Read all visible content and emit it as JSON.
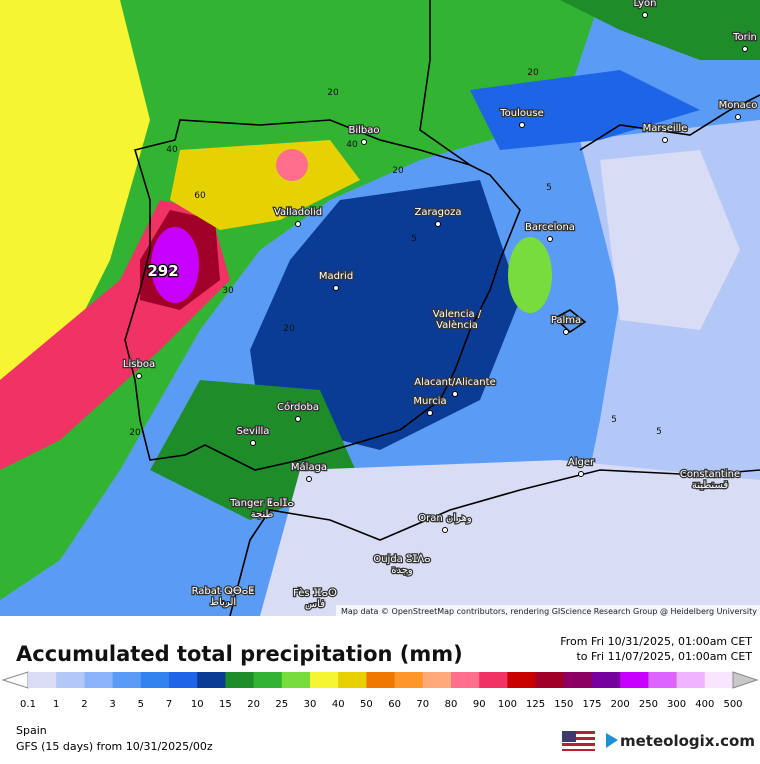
{
  "map": {
    "cities": [
      {
        "label": "Lyon"
      },
      {
        "label": "Torin"
      },
      {
        "label": "Monaco"
      },
      {
        "label": "Marseille"
      },
      {
        "label": "Toulouse"
      },
      {
        "label": "Bilbao"
      },
      {
        "label": "Valladolid"
      },
      {
        "label": "Zaragoza"
      },
      {
        "label": "Barcelona"
      },
      {
        "label": "Madrid"
      },
      {
        "label": "Valencia /",
        "label2": "València"
      },
      {
        "label": "Palma"
      },
      {
        "label": "Lisboa"
      },
      {
        "label": "Alacant/Alicante"
      },
      {
        "label": "Murcia"
      },
      {
        "label": "Córdoba"
      },
      {
        "label": "Sevilla"
      },
      {
        "label": "Málaga"
      },
      {
        "label": "Alger"
      },
      {
        "label": "Constantine",
        "label2": "قسنطينة"
      },
      {
        "label": "Tanger ⵟⴰⵏⵊⴰ",
        "label2": "طنجة"
      },
      {
        "label": "Oran وهران"
      },
      {
        "label": "Oujda ⵓⵊⴷⴰ",
        "label2": "وجدة"
      },
      {
        "label": "Rabat ⵕⴱⴰⵟ",
        "label2": "الرباط"
      },
      {
        "label": "Fès ⴼⴰⵙ",
        "label2": "فاس"
      }
    ],
    "contour_labels": [
      "20",
      "40",
      "40",
      "60",
      "20",
      "20",
      "5",
      "5",
      "30",
      "20",
      "20",
      "5",
      "5"
    ],
    "max_label": "292",
    "attribution": "Map data © OpenStreetMap contributors, rendering GIScience Research Group @ Heidelberg University"
  },
  "title": "Accumulated total precipitation (mm)",
  "period": {
    "from": "From Fri 10/31/2025, 01:00am CET",
    "to": "to Fri 11/07/2025, 01:00am CET"
  },
  "legend": {
    "levels": [
      {
        "label": 0.1,
        "color": "#d8dcf4"
      },
      {
        "label": 1,
        "color": "#b4c8f8"
      },
      {
        "label": 2,
        "color": "#8cb4fa"
      },
      {
        "label": 3,
        "color": "#5a9cf5"
      },
      {
        "label": 5,
        "color": "#3282f0"
      },
      {
        "label": 7,
        "color": "#1e64e6"
      },
      {
        "label": 10,
        "color": "#0a3c96"
      },
      {
        "label": 15,
        "color": "#1e8c28"
      },
      {
        "label": 20,
        "color": "#32b432"
      },
      {
        "label": 25,
        "color": "#78dc3c"
      },
      {
        "label": 30,
        "color": "#f5f532"
      },
      {
        "label": 40,
        "color": "#e6d200"
      },
      {
        "label": 50,
        "color": "#f07800"
      },
      {
        "label": 60,
        "color": "#ff9628"
      },
      {
        "label": 70,
        "color": "#ffaa78"
      },
      {
        "label": 80,
        "color": "#ff6e8c"
      },
      {
        "label": 90,
        "color": "#f03264"
      },
      {
        "label": 100,
        "color": "#c80000"
      },
      {
        "label": 125,
        "color": "#a00028"
      },
      {
        "label": 150,
        "color": "#8c0064"
      },
      {
        "label": 175,
        "color": "#7800a0"
      },
      {
        "label": 200,
        "color": "#c800ff"
      },
      {
        "label": 250,
        "color": "#dc64ff"
      },
      {
        "label": 300,
        "color": "#f0b4ff"
      },
      {
        "label": 400,
        "color": "#f8e6ff"
      },
      {
        "label": 500,
        "color": "#c8c8c8"
      }
    ]
  },
  "footer": {
    "region": "Spain",
    "model": "GFS (15 days) from 10/31/2025/00z",
    "brand": "meteologix.com"
  }
}
